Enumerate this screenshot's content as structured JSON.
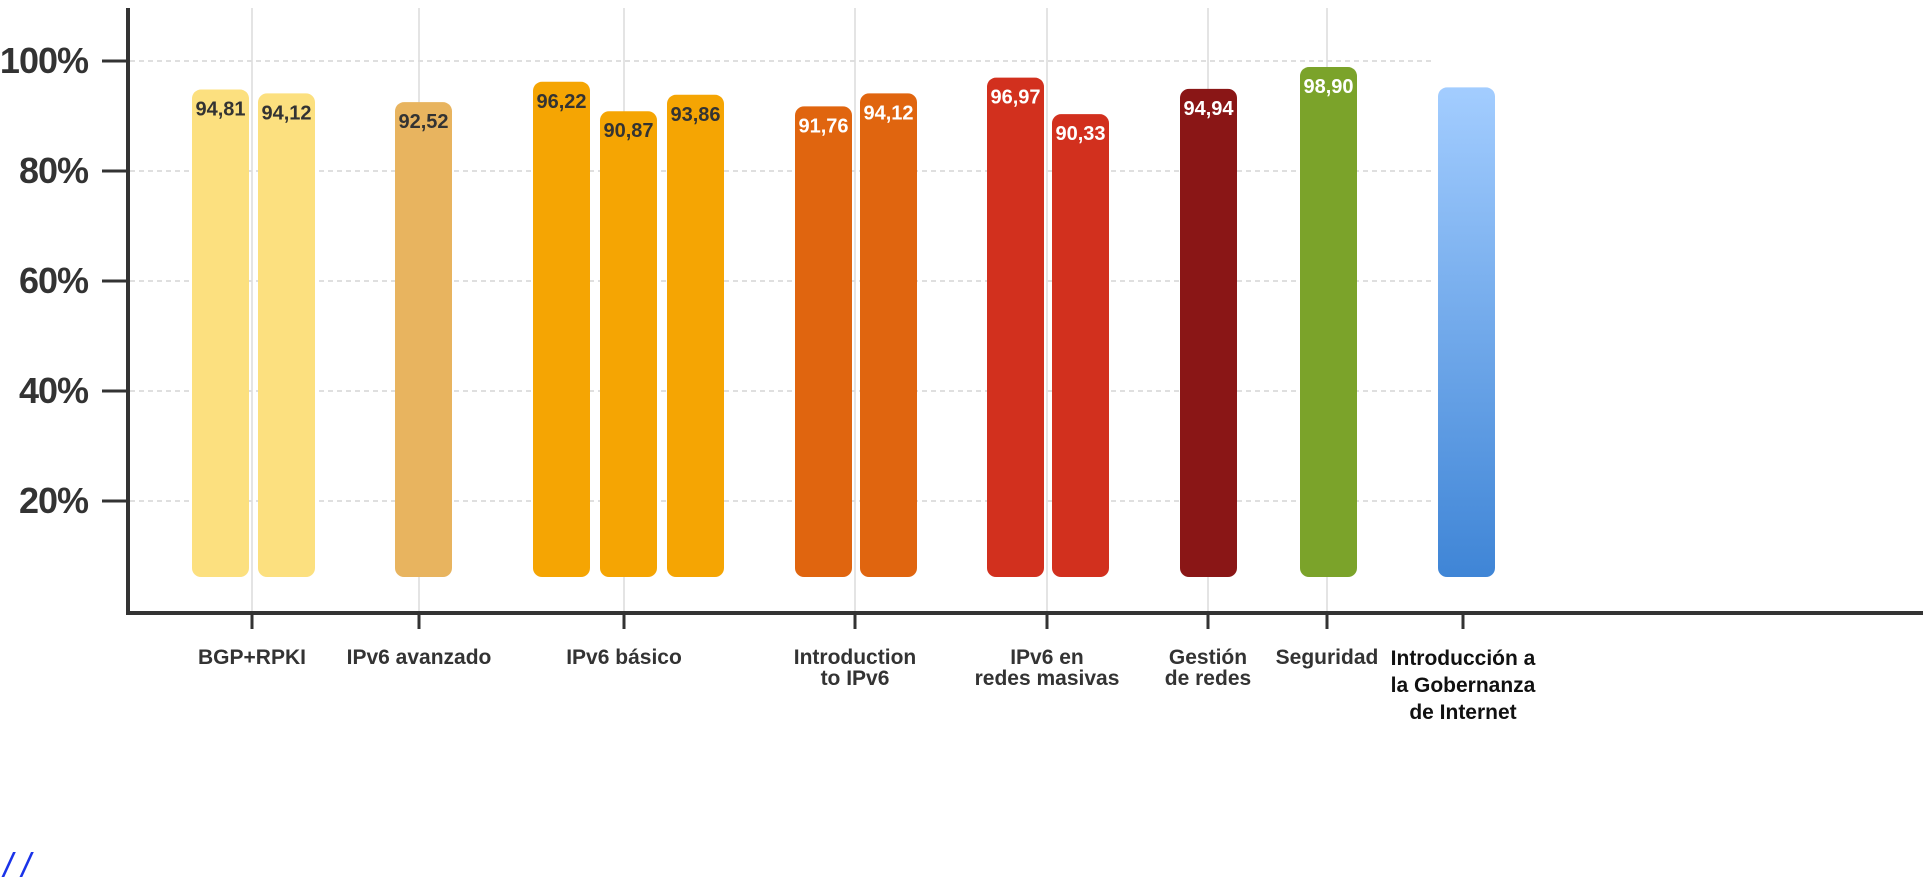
{
  "chart_data": {
    "type": "bar",
    "y_axis": {
      "ylim": [
        0,
        100
      ],
      "ticks": [
        20,
        40,
        60,
        80,
        100
      ],
      "tick_labels": [
        "20%",
        "40%",
        "60%",
        "80%",
        "100%"
      ],
      "grid": true
    },
    "groups": [
      {
        "label_lines": [
          "BGP+RPKI"
        ],
        "bars": [
          {
            "value": 94.81,
            "label": "94,81",
            "color": "#FCE07F",
            "label_color": "#333333"
          },
          {
            "value": 94.12,
            "label": "94,12",
            "color": "#FCE07F",
            "label_color": "#333333"
          }
        ]
      },
      {
        "label_lines": [
          "IPv6 avanzado"
        ],
        "bars": [
          {
            "value": 92.52,
            "label": "92,52",
            "color": "#E8B45F",
            "label_color": "#333333"
          }
        ]
      },
      {
        "label_lines": [
          "IPv6 básico"
        ],
        "bars": [
          {
            "value": 96.22,
            "label": "96,22",
            "color": "#F5A503",
            "label_color": "#333333"
          },
          {
            "value": 90.87,
            "label": "90,87",
            "color": "#F5A503",
            "label_color": "#333333"
          },
          {
            "value": 93.86,
            "label": "93,86",
            "color": "#F5A503",
            "label_color": "#333333"
          }
        ]
      },
      {
        "label_lines": [
          "Introduction",
          "to IPv6"
        ],
        "bars": [
          {
            "value": 91.76,
            "label": "91,76",
            "color": "#E0650F",
            "label_color": "#ffffff"
          },
          {
            "value": 94.12,
            "label": "94,12",
            "color": "#E0650F",
            "label_color": "#ffffff"
          }
        ]
      },
      {
        "label_lines": [
          "IPv6 en",
          "redes masivas"
        ],
        "bars": [
          {
            "value": 96.97,
            "label": "96,97",
            "color": "#D2301E",
            "label_color": "#ffffff"
          },
          {
            "value": 90.33,
            "label": "90,33",
            "color": "#D2301E",
            "label_color": "#ffffff"
          }
        ]
      },
      {
        "label_lines": [
          "Gestión",
          "de redes"
        ],
        "bars": [
          {
            "value": 94.94,
            "label": "94,94",
            "color": "#8A1616",
            "label_color": "#ffffff"
          }
        ]
      },
      {
        "label_lines": [
          "Seguridad"
        ],
        "bars": [
          {
            "value": 98.9,
            "label": "98,90",
            "color": "#7BA32A",
            "label_color": "#ffffff"
          }
        ]
      },
      {
        "label_lines": [
          "Introducción a",
          "la Gobernanza",
          "de Internet"
        ],
        "bars": [
          {
            "value": 95.2,
            "label": "",
            "color_top": "#A3CDFF",
            "color_bottom": "#3F85D6",
            "label_color": "#ffffff"
          }
        ]
      }
    ]
  },
  "footer_link_text": "//"
}
